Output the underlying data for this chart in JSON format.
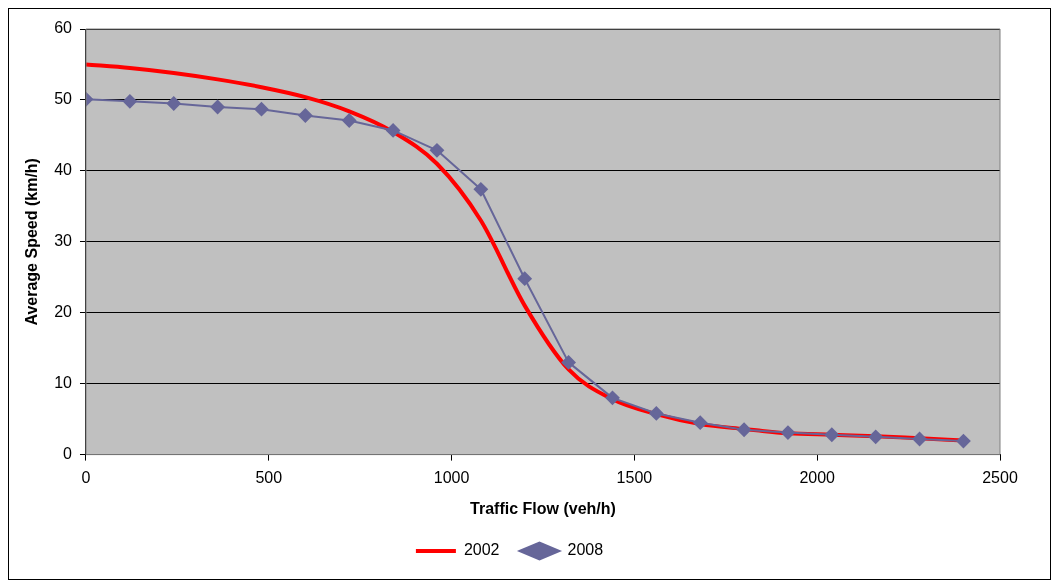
{
  "chart_data": {
    "type": "line",
    "xlabel": "Traffic Flow (veh/h)",
    "ylabel": "Average Speed (km/h)",
    "x": [
      0,
      120,
      240,
      360,
      480,
      600,
      720,
      840,
      960,
      1080,
      1200,
      1320,
      1440,
      1560,
      1680,
      1800,
      1920,
      2040,
      2160,
      2280,
      2400
    ],
    "series": [
      {
        "name": "2002",
        "color": "#ff0000",
        "marker": "none",
        "values": [
          55,
          54.5,
          53.8,
          52.9,
          51.8,
          50.4,
          48.4,
          45.5,
          41,
          33,
          21,
          12,
          7.8,
          5.7,
          4.3,
          3.6,
          3.0,
          2.8,
          2.6,
          2.3,
          2.0
        ]
      },
      {
        "name": "2008",
        "color": "#666699",
        "marker": "diamond",
        "values": [
          50.1,
          49.8,
          49.5,
          49.0,
          48.7,
          47.8,
          47.1,
          45.7,
          42.9,
          37.4,
          24.8,
          13.0,
          8.0,
          5.8,
          4.5,
          3.5,
          3.1,
          2.8,
          2.5,
          2.2,
          1.9
        ]
      }
    ],
    "xlim": [
      0,
      2500
    ],
    "xticks": [
      0,
      500,
      1000,
      1500,
      2000,
      2500
    ],
    "ylim": [
      0,
      60
    ],
    "yticks": [
      0,
      10,
      20,
      30,
      40,
      50,
      60
    ],
    "grid": "y",
    "legend": "bottom"
  }
}
